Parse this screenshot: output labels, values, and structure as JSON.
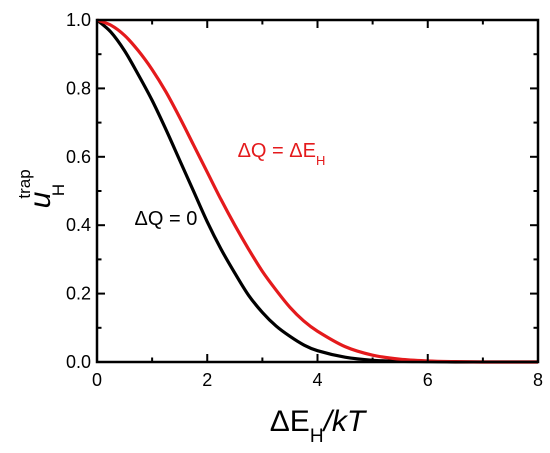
{
  "chart_data": {
    "type": "line",
    "title": "",
    "xlabel": {
      "pre": "ΔE",
      "sub": "H",
      "post": "/kT"
    },
    "ylabel": {
      "main": "u",
      "sup": "trap",
      "sub": "H"
    },
    "xlim": [
      0,
      8
    ],
    "ylim": [
      0,
      1.0
    ],
    "x_ticks": [
      "0",
      "2",
      "4",
      "6",
      "8"
    ],
    "y_ticks": [
      "0.0",
      "0.2",
      "0.4",
      "0.6",
      "0.8",
      "1.0"
    ],
    "grid": false,
    "series": [
      {
        "name": "ΔQ = 0",
        "color": "#000000",
        "x": [
          0,
          0.25,
          0.5,
          0.75,
          1,
          1.25,
          1.5,
          1.75,
          2,
          2.25,
          2.5,
          2.75,
          3,
          3.25,
          3.5,
          3.75,
          4,
          4.5,
          5,
          5.5,
          6,
          6.5,
          7,
          7.5,
          8
        ],
        "y": [
          1.0,
          0.965,
          0.91,
          0.84,
          0.765,
          0.68,
          0.59,
          0.5,
          0.41,
          0.33,
          0.26,
          0.195,
          0.145,
          0.105,
          0.075,
          0.05,
          0.033,
          0.014,
          0.005,
          0.002,
          0.001,
          0.0,
          0.0,
          0.0,
          0.0
        ]
      },
      {
        "name": "ΔQ = ΔE_H",
        "color": "#e41a1c",
        "x": [
          0,
          0.25,
          0.5,
          0.75,
          1,
          1.25,
          1.5,
          1.75,
          2,
          2.25,
          2.5,
          2.75,
          3,
          3.25,
          3.5,
          3.75,
          4,
          4.5,
          5,
          5.5,
          6,
          6.5,
          7,
          7.5,
          8
        ],
        "y": [
          1.0,
          0.985,
          0.955,
          0.91,
          0.855,
          0.79,
          0.715,
          0.635,
          0.555,
          0.475,
          0.4,
          0.33,
          0.265,
          0.21,
          0.16,
          0.12,
          0.09,
          0.045,
          0.02,
          0.008,
          0.003,
          0.001,
          0.0,
          0.0,
          0.0
        ]
      }
    ],
    "annotations": [
      {
        "series": 1,
        "text": {
          "pre": "ΔQ = ΔE",
          "sub": "H"
        },
        "x": 2.55,
        "y": 0.6
      },
      {
        "series": 0,
        "text": {
          "pre": "ΔQ = 0",
          "sub": ""
        },
        "x": 0.68,
        "y": 0.4
      }
    ]
  }
}
